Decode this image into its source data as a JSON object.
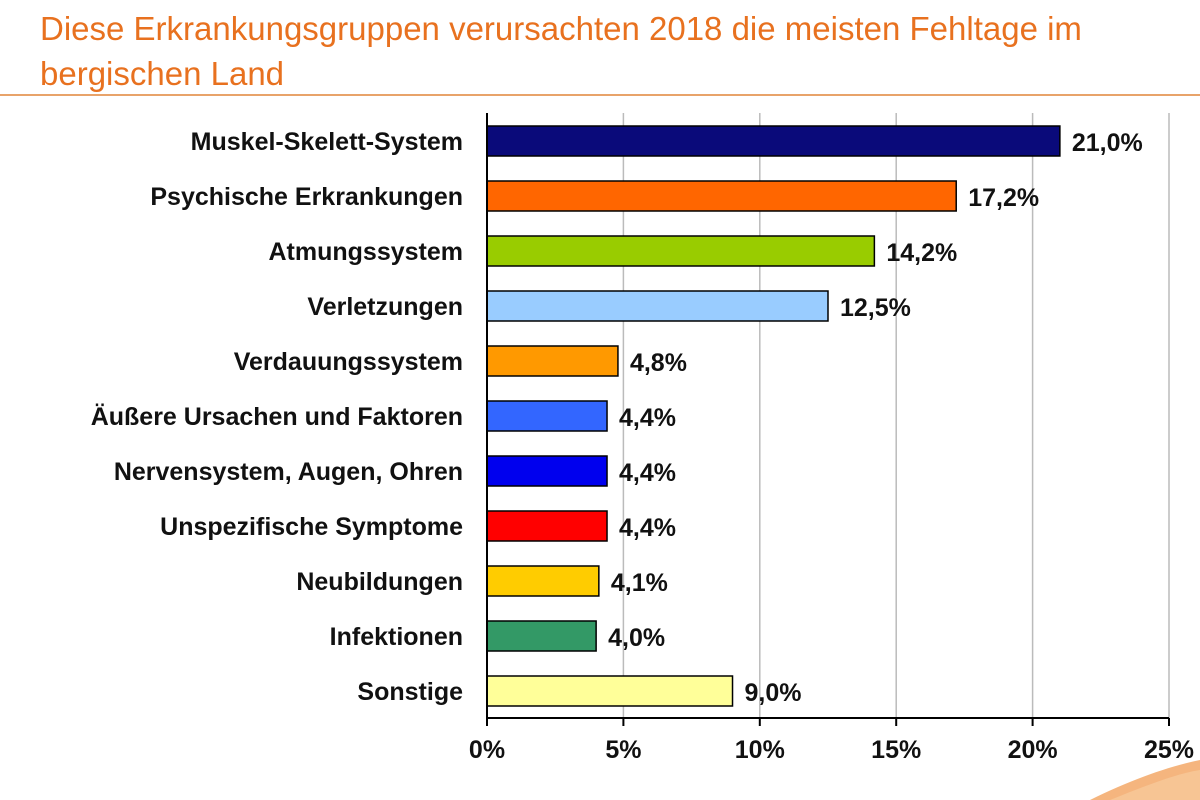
{
  "chart_data": {
    "type": "bar",
    "orientation": "horizontal",
    "title": "Diese Erkrankungsgruppen verursachten 2018 die meisten Fehltage im bergischen Land",
    "categories": [
      "Muskel-Skelett-System",
      "Psychische Erkrankungen",
      "Atmungssystem",
      "Verletzungen",
      "Verdauungssystem",
      "Äußere Ursachen und Faktoren",
      "Nervensystem, Augen, Ohren",
      "Unspezifische Symptome",
      "Neubildungen",
      "Infektionen",
      "Sonstige"
    ],
    "values": [
      21.0,
      17.2,
      14.2,
      12.5,
      4.8,
      4.4,
      4.4,
      4.4,
      4.1,
      4.0,
      9.0
    ],
    "value_labels": [
      "21,0%",
      "17,2%",
      "14,2%",
      "12,5%",
      "4,8%",
      "4,4%",
      "4,4%",
      "4,4%",
      "4,1%",
      "4,0%",
      "9,0%"
    ],
    "colors": [
      "#0a0a7a",
      "#ff6600",
      "#99cc00",
      "#99ccff",
      "#ff9900",
      "#3366ff",
      "#0000ee",
      "#ff0000",
      "#ffcc00",
      "#339966",
      "#ffff99"
    ],
    "xlim": [
      0,
      25
    ],
    "xticks": [
      0,
      5,
      10,
      15,
      20,
      25
    ],
    "xtick_labels": [
      "0%",
      "5%",
      "10%",
      "15%",
      "20%",
      "25%"
    ],
    "xlabel": "",
    "ylabel": "",
    "grid": true,
    "legend": "none"
  },
  "colors": {
    "title": "#e8711f",
    "rule": "#e8a36a",
    "grid": "#bbbbbb",
    "bar_outline": "#000000"
  }
}
